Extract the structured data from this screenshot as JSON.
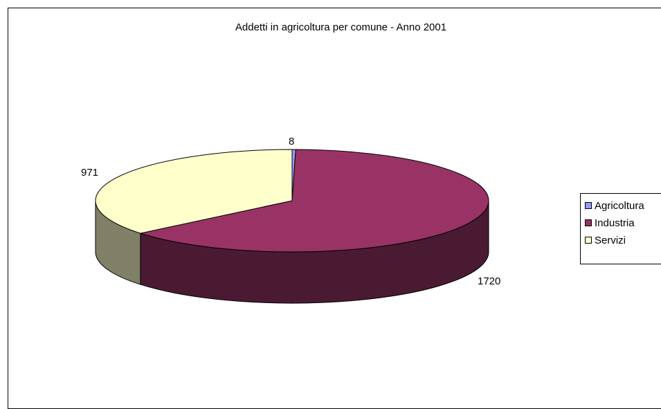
{
  "chart_data": {
    "type": "pie",
    "title": "Addetti in agricoltura per comune - Anno 2001",
    "categories": [
      "Agricoltura",
      "Industria",
      "Servizi"
    ],
    "values": [
      8,
      1720,
      971
    ],
    "colors": [
      "#9999ff",
      "#993366",
      "#ffffcc"
    ],
    "side_colors": [
      "#4d4d80",
      "#4a1a33",
      "#808066"
    ],
    "three_d": true,
    "legend_position": "right",
    "data_labels": [
      "8",
      "1720",
      "971"
    ]
  }
}
